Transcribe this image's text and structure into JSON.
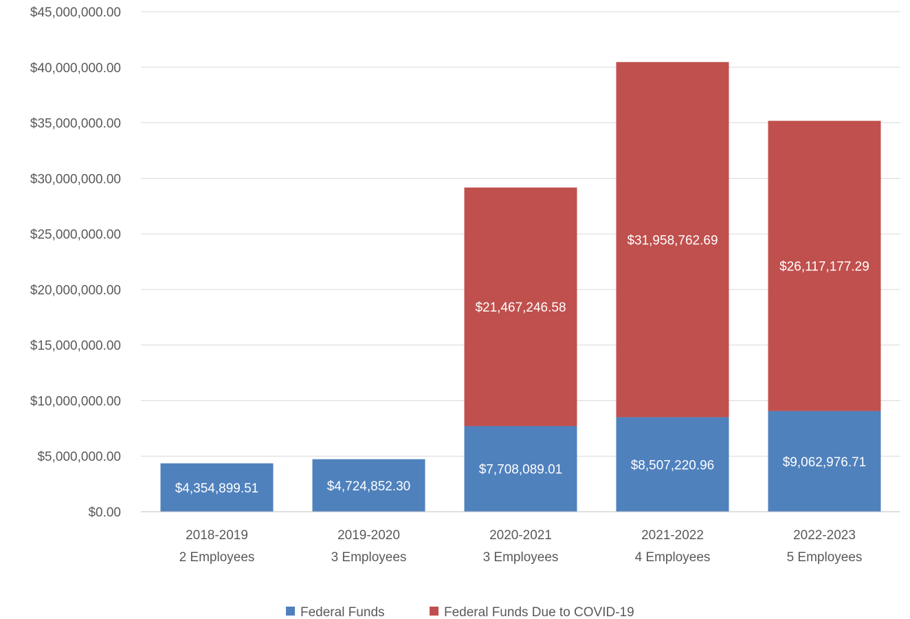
{
  "chart_data": {
    "type": "bar",
    "stacked": true,
    "categories": [
      [
        "2018-2019",
        "2 Employees"
      ],
      [
        "2019-2020",
        "3 Employees"
      ],
      [
        "2020-2021",
        "3 Employees"
      ],
      [
        "2021-2022",
        "4 Employees"
      ],
      [
        "2022-2023",
        "5 Employees"
      ]
    ],
    "series": [
      {
        "name": "Federal Funds",
        "color": "#4f81bd",
        "values": [
          4354899.51,
          4724852.3,
          7708089.01,
          8507220.96,
          9062976.71
        ],
        "labels": [
          "$4,354,899.51",
          "$4,724,852.30",
          "$7,708,089.01",
          "$8,507,220.96",
          "$9,062,976.71"
        ]
      },
      {
        "name": "Federal Funds Due to COVID-19",
        "color": "#c0504d",
        "values": [
          0,
          0,
          21467246.58,
          31958762.69,
          26117177.29
        ],
        "labels": [
          "",
          "",
          "$21,467,246.58",
          "$31,958,762.69",
          "$26,117,177.29"
        ]
      }
    ],
    "yticks": [
      "$0.00",
      "$5,000,000.00",
      "$10,000,000.00",
      "$15,000,000.00",
      "$20,000,000.00",
      "$25,000,000.00",
      "$30,000,000.00",
      "$35,000,000.00",
      "$40,000,000.00",
      "$45,000,000.00"
    ],
    "ylim": [
      0,
      45000000
    ],
    "ystep": 5000000,
    "grid": true,
    "legend_position": "bottom",
    "title": "",
    "xlabel": "",
    "ylabel": ""
  }
}
